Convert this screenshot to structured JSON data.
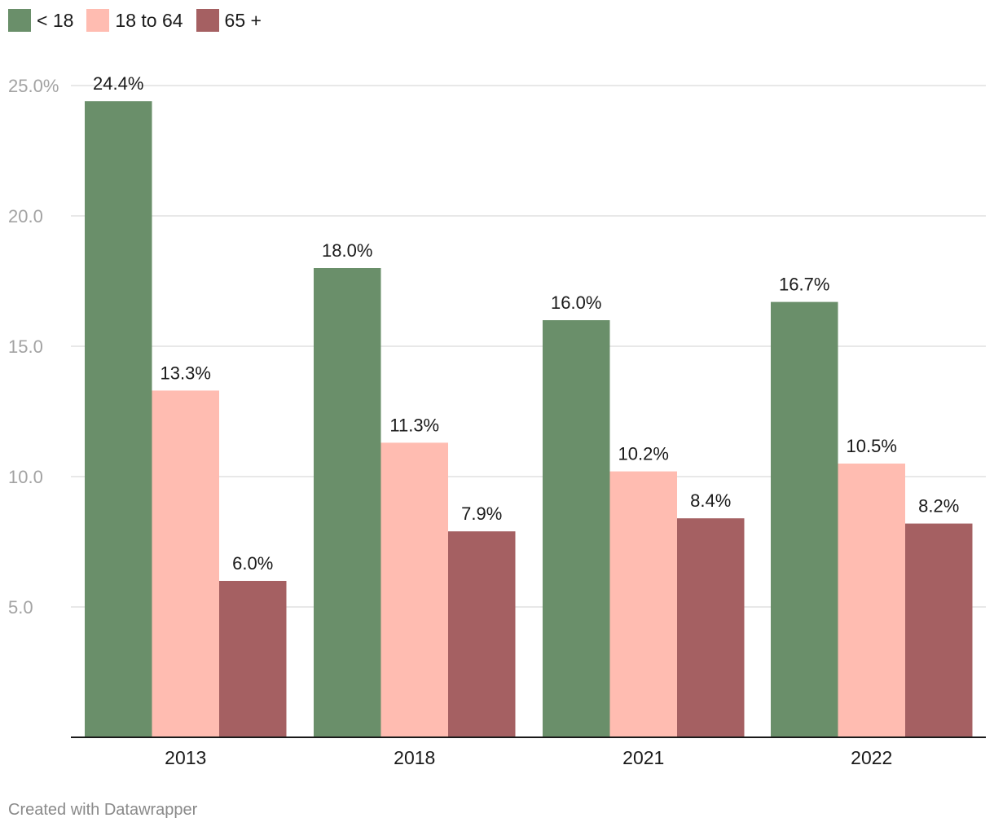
{
  "chart_data": {
    "type": "bar",
    "categories": [
      "2013",
      "2018",
      "2021",
      "2022"
    ],
    "series": [
      {
        "name": "< 18",
        "color": "#6a8f6a",
        "values": [
          24.4,
          18.0,
          16.0,
          16.7
        ]
      },
      {
        "name": "18 to 64",
        "color": "#ffbcb1",
        "values": [
          13.3,
          11.3,
          10.2,
          10.5
        ]
      },
      {
        "name": "65 +",
        "color": "#a56062",
        "values": [
          6.0,
          7.9,
          8.4,
          8.2
        ]
      }
    ],
    "value_labels": [
      [
        "24.4%",
        "18.0%",
        "16.0%",
        "16.7%"
      ],
      [
        "13.3%",
        "11.3%",
        "10.2%",
        "10.5%"
      ],
      [
        "6.0%",
        "7.9%",
        "8.4%",
        "8.2%"
      ]
    ],
    "y_ticks": [
      {
        "value": 25,
        "label": "25.0%"
      },
      {
        "value": 20,
        "label": "20.0"
      },
      {
        "value": 15,
        "label": "15.0"
      },
      {
        "value": 10,
        "label": "10.0"
      },
      {
        "value": 5,
        "label": "5.0"
      }
    ],
    "ylim": [
      0,
      25
    ],
    "grid": true,
    "legend_position": "top-left",
    "title": "",
    "xlabel": "",
    "ylabel": ""
  },
  "footer": {
    "credit": "Created with Datawrapper"
  }
}
